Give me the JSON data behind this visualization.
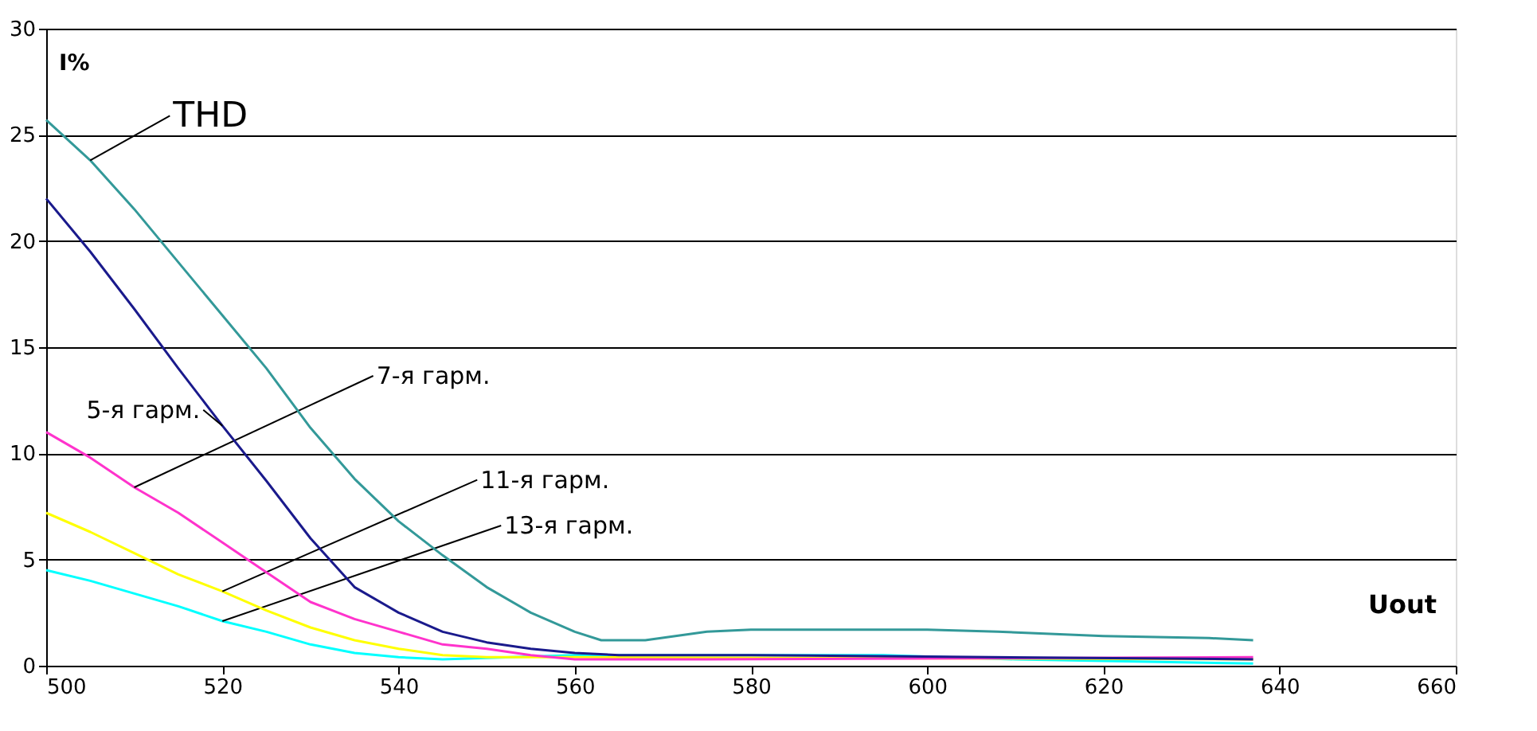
{
  "chart_data": {
    "type": "line",
    "xlabel": "Uout",
    "ylabel": "I%",
    "xlim": [
      500,
      660
    ],
    "xticks": [
      500,
      520,
      540,
      560,
      580,
      600,
      620,
      640,
      660
    ],
    "ylim": [
      0,
      30
    ],
    "yticks": [
      0,
      5,
      10,
      15,
      20,
      25,
      30
    ],
    "grid": "y",
    "marker": "none",
    "line_style": "solid",
    "series": [
      {
        "name": "THD",
        "color": "#339999",
        "x": [
          500,
          505,
          510,
          515,
          520,
          525,
          530,
          535,
          540,
          545,
          550,
          555,
          560,
          563,
          568,
          575,
          580,
          600,
          608,
          620,
          632,
          637
        ],
        "values": [
          25.7,
          23.8,
          21.5,
          19,
          16.5,
          14,
          11.2,
          8.8,
          6.8,
          5.2,
          3.7,
          2.5,
          1.6,
          1.2,
          1.2,
          1.6,
          1.7,
          1.7,
          1.6,
          1.4,
          1.3,
          1.2
        ]
      },
      {
        "name": "5-я гарм.",
        "color": "#1a1a8c",
        "x": [
          500,
          505,
          510,
          515,
          520,
          525,
          530,
          535,
          540,
          545,
          550,
          555,
          560,
          565,
          580,
          637
        ],
        "values": [
          22,
          19.5,
          16.8,
          14,
          11.3,
          8.7,
          6,
          3.7,
          2.5,
          1.6,
          1.1,
          0.8,
          0.6,
          0.5,
          0.5,
          0.3
        ]
      },
      {
        "name": "7-я гарм.",
        "color": "#ff33cc",
        "x": [
          500,
          505,
          510,
          515,
          520,
          525,
          530,
          535,
          540,
          545,
          550,
          555,
          560,
          575,
          637
        ],
        "values": [
          11,
          9.8,
          8.4,
          7.2,
          5.8,
          4.4,
          3,
          2.2,
          1.6,
          1,
          0.8,
          0.5,
          0.3,
          0.3,
          0.4
        ]
      },
      {
        "name": "11-я гарм.",
        "color": "#ffff00",
        "x": [
          500,
          505,
          510,
          515,
          520,
          525,
          530,
          535,
          540,
          545,
          550,
          560,
          637
        ],
        "values": [
          7.2,
          6.3,
          5.3,
          4.3,
          3.5,
          2.6,
          1.8,
          1.2,
          0.8,
          0.5,
          0.4,
          0.4,
          0.3
        ]
      },
      {
        "name": "13-я гарм.",
        "color": "#00ffff",
        "x": [
          500,
          505,
          510,
          515,
          520,
          525,
          530,
          535,
          540,
          545,
          560,
          595,
          610,
          637
        ],
        "values": [
          4.5,
          4,
          3.4,
          2.8,
          2.1,
          1.6,
          1,
          0.6,
          0.4,
          0.3,
          0.5,
          0.5,
          0.3,
          0.1
        ]
      }
    ]
  }
}
